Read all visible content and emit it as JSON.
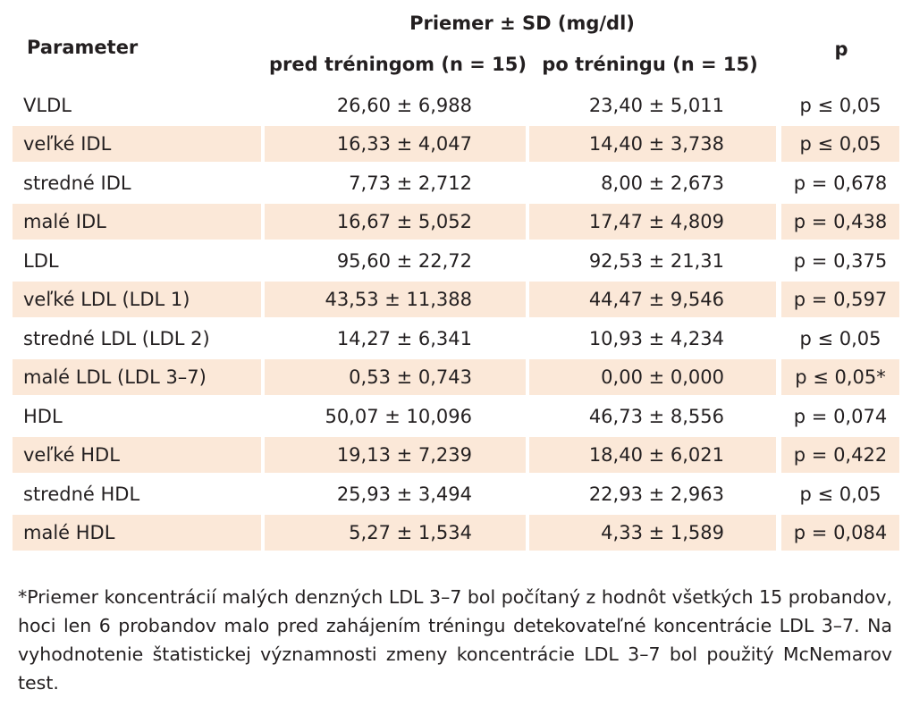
{
  "header": {
    "parameter": "Parameter",
    "mean_sd": "Priemer ± SD (mg/dl)",
    "pre": "pred tréningom (n = 15)",
    "post": "po tréningu (n = 15)",
    "p": "p"
  },
  "rows": [
    {
      "param": "VLDL",
      "pre": "26,60 ± 6,988",
      "post": "23,40 ± 5,011",
      "p": "p ≤ 0,05"
    },
    {
      "param": "veľké IDL",
      "pre": "16,33 ± 4,047",
      "post": "14,40 ± 3,738",
      "p": "p ≤ 0,05"
    },
    {
      "param": "stredné IDL",
      "pre": "7,73 ± 2,712",
      "post": "8,00 ± 2,673",
      "p": "p = 0,678"
    },
    {
      "param": "malé IDL",
      "pre": "16,67 ± 5,052",
      "post": "17,47 ± 4,809",
      "p": "p = 0,438"
    },
    {
      "param": "LDL",
      "pre": "95,60 ± 22,72",
      "post": "92,53 ± 21,31",
      "p": "p = 0,375"
    },
    {
      "param": "veľké LDL (LDL 1)",
      "pre": "43,53 ± 11,388",
      "post": "44,47 ± 9,546",
      "p": "p = 0,597"
    },
    {
      "param": "stredné LDL (LDL 2)",
      "pre": "14,27 ± 6,341",
      "post": "10,93 ± 4,234",
      "p": "p ≤ 0,05"
    },
    {
      "param": "malé LDL (LDL 3–7)",
      "pre": "0,53 ± 0,743",
      "post": "0,00 ± 0,000",
      "p": "p ≤ 0,05*"
    },
    {
      "param": "HDL",
      "pre": "50,07 ± 10,096",
      "post": "46,73 ± 8,556",
      "p": "p = 0,074"
    },
    {
      "param": "veľké HDL",
      "pre": "19,13 ± 7,239",
      "post": "18,40 ± 6,021",
      "p": "p = 0,422"
    },
    {
      "param": "stredné HDL",
      "pre": "25,93 ± 3,494",
      "post": "22,93 ± 2,963",
      "p": "p ≤ 0,05"
    },
    {
      "param": "malé HDL",
      "pre": "5,27 ± 1,534",
      "post": "4,33 ± 1,589",
      "p": "p = 0,084"
    }
  ],
  "footnote": "*Priemer koncentrácií malých denzných LDL 3–7 bol počítaný z hodnôt všetkých 15 probandov, hoci len 6 probandov malo pred zahájením tréningu detekovateľné koncentrácie LDL 3–7. Na vyhodnotenie štatistickej významnosti zmeny koncentrácie LDL 3–7 bol použitý McNemarov test.",
  "colors": {
    "shade": "#fbe8d8",
    "text": "#231f20"
  }
}
